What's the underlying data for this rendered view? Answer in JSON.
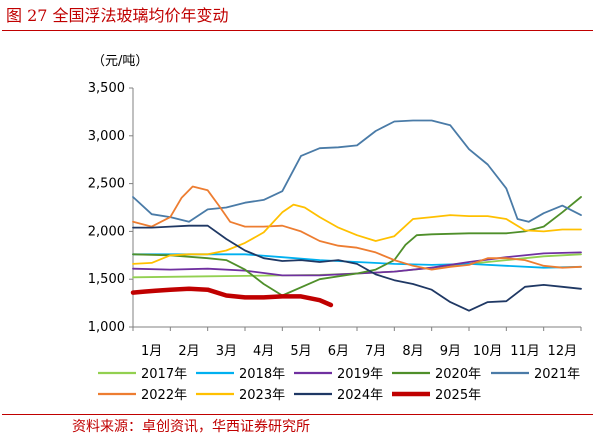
{
  "figure": {
    "title": "图 27 全国浮法玻璃均价年变动",
    "source": "资料来源：卓创资讯，华西证券研究所"
  },
  "chart_data": {
    "type": "line",
    "unit": "（元/吨）",
    "ylim": [
      1000,
      3500
    ],
    "yticks": [
      "1,000",
      "1,500",
      "2,000",
      "2,500",
      "3,000",
      "3,500"
    ],
    "categories": [
      "1月",
      "2月",
      "3月",
      "4月",
      "5月",
      "6月",
      "7月",
      "8月",
      "9月",
      "10月",
      "11月",
      "12月"
    ],
    "grid": false,
    "legend_position": "bottom",
    "series": [
      {
        "name": "2017年",
        "color": "#92d050",
        "x": [
          1,
          2,
          3,
          4,
          5,
          6,
          7,
          8,
          9,
          10,
          11,
          12,
          13
        ],
        "y": [
          1520,
          1525,
          1530,
          1535,
          1540,
          1545,
          1560,
          1580,
          1620,
          1660,
          1700,
          1740,
          1760
        ]
      },
      {
        "name": "2018年",
        "color": "#00b0f0",
        "x": [
          1,
          2,
          3,
          4,
          5,
          6,
          7,
          8,
          9,
          10,
          11,
          12,
          13
        ],
        "y": [
          1760,
          1760,
          1760,
          1760,
          1730,
          1700,
          1680,
          1660,
          1650,
          1660,
          1640,
          1620,
          1630
        ]
      },
      {
        "name": "2019年",
        "color": "#7030a0",
        "x": [
          1,
          2,
          3,
          4,
          5,
          6,
          7,
          8,
          9,
          10,
          11,
          12,
          13
        ],
        "y": [
          1610,
          1600,
          1610,
          1590,
          1540,
          1540,
          1560,
          1580,
          1620,
          1680,
          1730,
          1770,
          1780
        ]
      },
      {
        "name": "2020年",
        "color": "#4f8f2a",
        "x": [
          1,
          2,
          3,
          3.5,
          4,
          4.5,
          5,
          6,
          7,
          7.5,
          8,
          8.3,
          8.6,
          9,
          10,
          11,
          11.5,
          12,
          12.5,
          13
        ],
        "y": [
          1760,
          1750,
          1720,
          1700,
          1600,
          1450,
          1330,
          1500,
          1560,
          1600,
          1700,
          1860,
          1960,
          1970,
          1980,
          1980,
          2000,
          2050,
          2200,
          2360
        ]
      },
      {
        "name": "2021年",
        "color": "#4a7ba7",
        "x": [
          1,
          1.5,
          2,
          2.5,
          3,
          3.5,
          4,
          4.5,
          5,
          5.5,
          6,
          6.5,
          7,
          7.5,
          8,
          8.5,
          9,
          9.5,
          10,
          10.5,
          11,
          11.3,
          11.6,
          12,
          12.5,
          13
        ],
        "y": [
          2360,
          2180,
          2150,
          2100,
          2230,
          2250,
          2300,
          2330,
          2420,
          2790,
          2870,
          2880,
          2900,
          3050,
          3150,
          3160,
          3160,
          3110,
          2860,
          2700,
          2450,
          2130,
          2100,
          2190,
          2270,
          2170
        ]
      },
      {
        "name": "2022年",
        "color": "#ed7d31",
        "x": [
          1,
          1.5,
          2,
          2.3,
          2.6,
          3,
          3.3,
          3.6,
          4,
          4.5,
          5,
          5.5,
          6,
          6.5,
          7,
          7.5,
          8,
          8.5,
          9,
          9.5,
          10,
          10.5,
          11,
          11.5,
          12,
          12.5,
          13
        ],
        "y": [
          2100,
          2050,
          2150,
          2350,
          2470,
          2430,
          2270,
          2100,
          2050,
          2050,
          2060,
          2000,
          1900,
          1850,
          1830,
          1780,
          1700,
          1640,
          1600,
          1630,
          1650,
          1720,
          1720,
          1700,
          1640,
          1620,
          1630
        ]
      },
      {
        "name": "2023年",
        "color": "#ffc000",
        "x": [
          1,
          1.5,
          2,
          2.5,
          3,
          3.5,
          4,
          4.5,
          5,
          5.3,
          5.6,
          6,
          6.5,
          7,
          7.5,
          8,
          8.5,
          9,
          9.5,
          10,
          10.5,
          11,
          11.5,
          12,
          12.5,
          13
        ],
        "y": [
          1660,
          1670,
          1750,
          1760,
          1760,
          1800,
          1880,
          1990,
          2200,
          2280,
          2250,
          2150,
          2040,
          1960,
          1900,
          1950,
          2130,
          2150,
          2170,
          2160,
          2160,
          2130,
          2010,
          2000,
          2020,
          2020
        ]
      },
      {
        "name": "2024年",
        "color": "#1f3864",
        "x": [
          1,
          1.5,
          2,
          2.5,
          3,
          3.5,
          4,
          4.5,
          5,
          5.5,
          6,
          6.5,
          7,
          7.5,
          8,
          8.5,
          9,
          9.5,
          10,
          10.5,
          11,
          11.5,
          12,
          12.5,
          13
        ],
        "y": [
          2040,
          2040,
          2050,
          2060,
          2060,
          1920,
          1800,
          1720,
          1690,
          1700,
          1680,
          1700,
          1660,
          1550,
          1490,
          1450,
          1390,
          1260,
          1170,
          1260,
          1270,
          1420,
          1440,
          1420,
          1400
        ]
      },
      {
        "name": "2025年",
        "color": "#c00000",
        "width": 4.5,
        "x": [
          1,
          1.3,
          1.6,
          2,
          2.5,
          3,
          3.5,
          4,
          4.5,
          5,
          5.5,
          6,
          6.3
        ],
        "y": [
          1360,
          1370,
          1380,
          1390,
          1400,
          1390,
          1330,
          1310,
          1310,
          1320,
          1320,
          1280,
          1230
        ]
      }
    ]
  }
}
